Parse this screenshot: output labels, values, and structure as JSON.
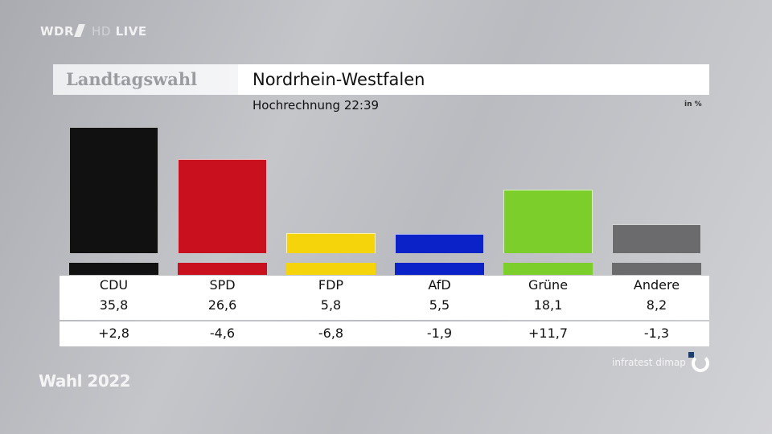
{
  "broadcast": {
    "channel": "WDR",
    "quality": "HD",
    "live": "LIVE",
    "program": "Wahl 2022"
  },
  "header": {
    "kicker": "Landtagswahl",
    "title": "Nordrhein-Westfalen",
    "subtitle": "Hochrechnung 22:39",
    "unit": "in %"
  },
  "source": "infratest dimap",
  "chart_data": {
    "type": "bar",
    "title": "Nordrhein-Westfalen",
    "subtitle": "Hochrechnung 22:39",
    "ylabel": "in %",
    "categories": [
      "CDU",
      "SPD",
      "FDP",
      "AfD",
      "Grüne",
      "Andere"
    ],
    "values": [
      35.8,
      26.6,
      5.8,
      5.5,
      18.1,
      8.2
    ],
    "value_labels": [
      "35,8",
      "26,6",
      "5,8",
      "5,5",
      "18,1",
      "8,2"
    ],
    "changes": [
      2.8,
      -4.6,
      -6.8,
      -1.9,
      11.7,
      -1.3
    ],
    "change_labels": [
      "+2,8",
      "-4,6",
      "-6,8",
      "-1,9",
      "+11,7",
      "-1,3"
    ],
    "colors": [
      "#111111",
      "#c8101e",
      "#f5d40c",
      "#0a22c8",
      "#7ccf2a",
      "#6b6b6d"
    ],
    "ylim": [
      0,
      36
    ],
    "grid": false
  }
}
